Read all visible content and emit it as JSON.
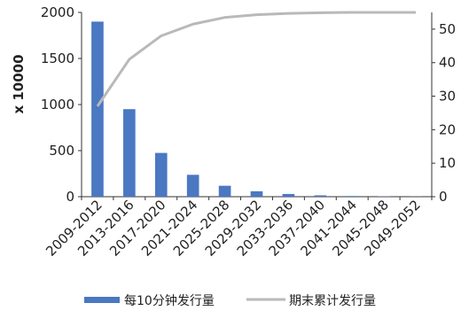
{
  "chart_data": {
    "type": "bar",
    "categories": [
      "2009-2012",
      "2013-2016",
      "2017-2020",
      "2021-2024",
      "2025-2028",
      "2029-2032",
      "2033-2036",
      "2037-2040",
      "2041-2044",
      "2045-2048",
      "2049-2052"
    ],
    "ylabel": "x 10000",
    "ylim": [
      0,
      2000
    ],
    "yticks": [
      0,
      500,
      1000,
      1500,
      2000
    ],
    "y2lim": [
      0,
      55
    ],
    "y2ticks": [
      "0",
      "10",
      "20",
      "30",
      "40",
      "50"
    ],
    "grid": false,
    "legend_position": "bottom",
    "series": [
      {
        "name": "每10分钟发行量",
        "type": "bar",
        "axis": "left",
        "color": "#4a78c2",
        "values": [
          1900,
          950,
          475,
          237.5,
          118.75,
          59.4,
          29.7,
          14.8,
          7.4,
          3.7,
          1.9
        ]
      },
      {
        "name": "期末累计发行量",
        "type": "line",
        "axis": "right",
        "color": "#b9b9b9",
        "values": [
          27,
          41,
          48,
          51.5,
          53.5,
          54.3,
          54.7,
          54.9,
          55,
          55,
          55
        ]
      }
    ]
  }
}
